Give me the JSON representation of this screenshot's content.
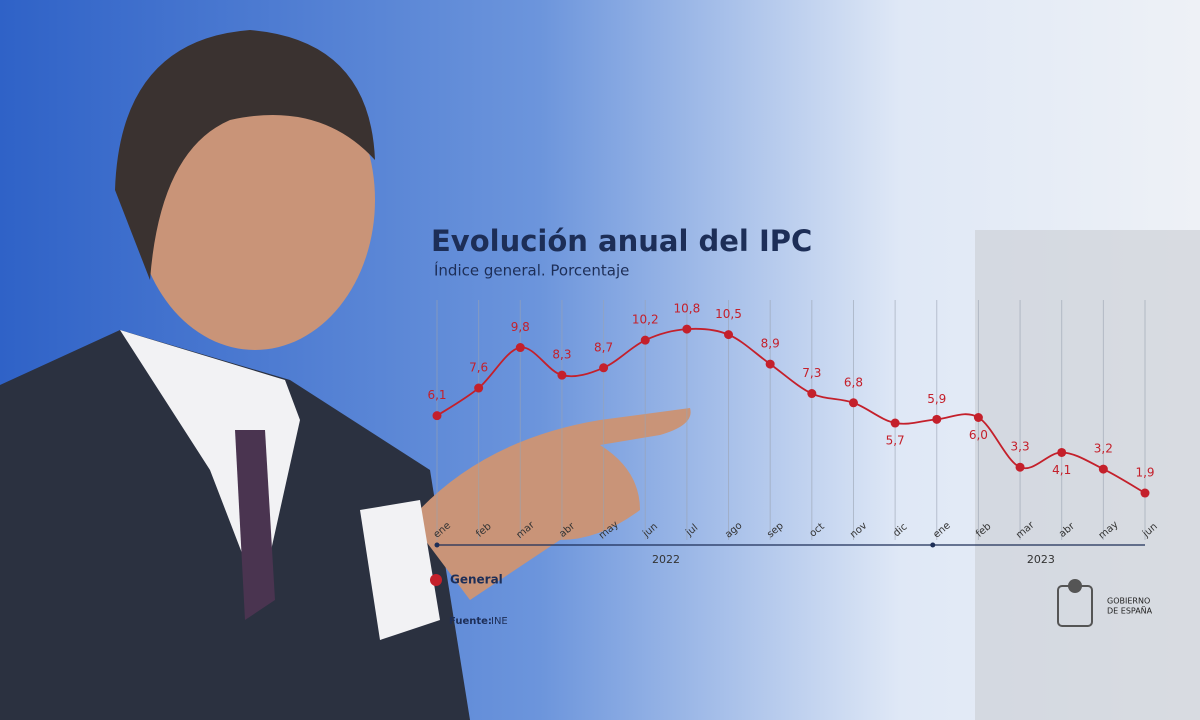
{
  "chart_data": {
    "type": "line",
    "title": "Evolución anual del IPC",
    "subtitle": "Índice general. Porcentaje",
    "categories": [
      "ene",
      "feb",
      "mar",
      "abr",
      "may",
      "jun",
      "jul",
      "ago",
      "sep",
      "oct",
      "nov",
      "dic",
      "ene",
      "feb",
      "mar",
      "abr",
      "may",
      "jun"
    ],
    "years": [
      "2022",
      "2023"
    ],
    "series": [
      {
        "name": "General",
        "color": "#c4202b",
        "values": [
          6.1,
          7.6,
          9.8,
          8.3,
          8.7,
          10.2,
          10.8,
          10.5,
          8.9,
          7.3,
          6.8,
          5.7,
          5.9,
          6.0,
          3.3,
          4.1,
          3.2,
          1.9
        ],
        "value_labels": [
          "6,1",
          "7,6",
          "9,8",
          "8,3",
          "8,7",
          "10,2",
          "10,8",
          "10,5",
          "8,9",
          "7,3",
          "6,8",
          "5,7",
          "5,9",
          "6,0",
          "3,3",
          "4,1",
          "3,2",
          "1,9"
        ]
      }
    ],
    "ylim": [
      0,
      12
    ],
    "grid": true,
    "source_label": "Fuente:",
    "source": "INE",
    "logo_text": [
      "GOBIERNO",
      "DE ESPAÑA"
    ]
  }
}
